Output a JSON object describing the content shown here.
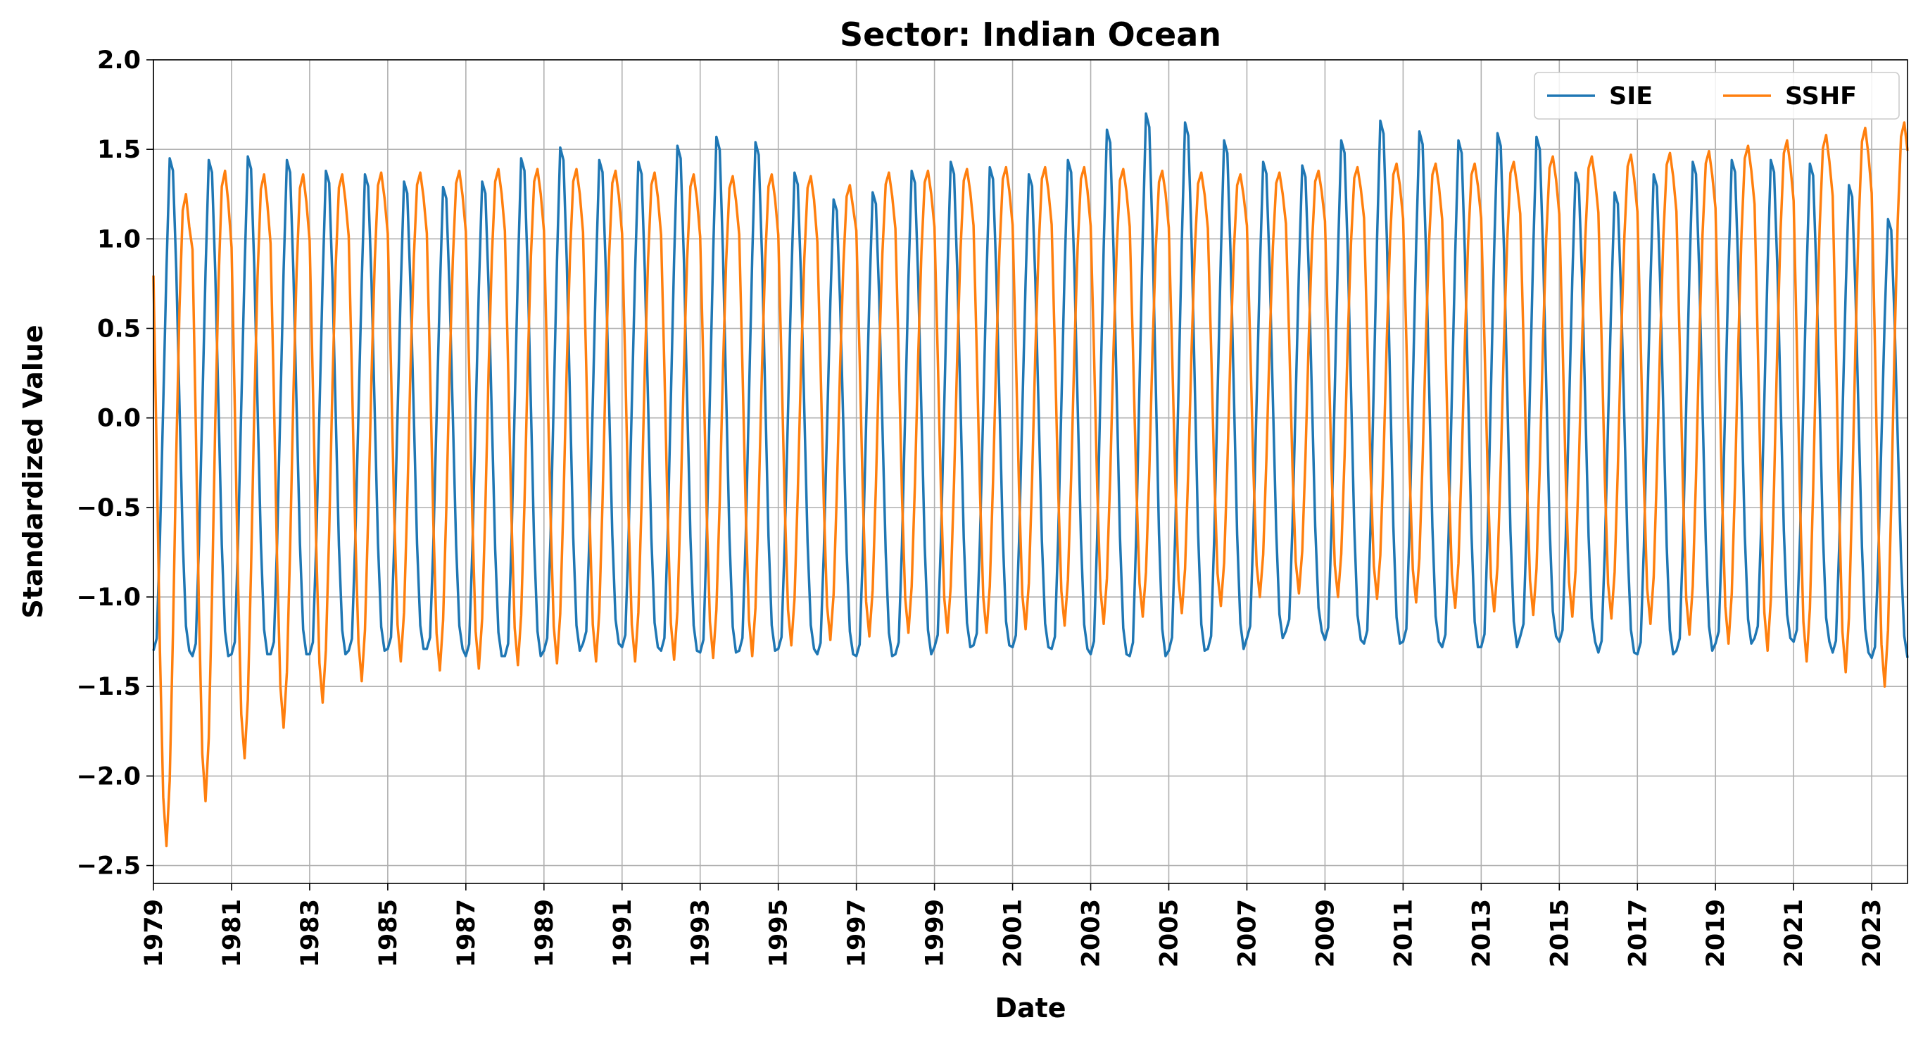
{
  "chart_data": {
    "type": "line",
    "title": "Sector: Indian Ocean",
    "xlabel": "Date",
    "ylabel": "Standardized Value",
    "x_range": [
      "1979-01",
      "2023-12"
    ],
    "ylim": [
      -2.6,
      2.0
    ],
    "y_ticks": [
      -2.5,
      -2.0,
      -1.5,
      -1.0,
      -0.5,
      0.0,
      0.5,
      1.0,
      1.5,
      2.0
    ],
    "y_tick_labels": [
      "−2.5",
      "−2.0",
      "−1.5",
      "−1.0",
      "−0.5",
      "0.0",
      "0.5",
      "1.0",
      "1.5",
      "2.0"
    ],
    "x_ticks": [
      "1979",
      "1981",
      "1983",
      "1985",
      "1987",
      "1989",
      "1991",
      "1993",
      "1995",
      "1997",
      "1999",
      "2001",
      "2003",
      "2005",
      "2007",
      "2009",
      "2011",
      "2013",
      "2015",
      "2017",
      "2019",
      "2021",
      "2023"
    ],
    "grid": true,
    "legend": {
      "position": "top-right",
      "columns": 2
    },
    "series": [
      {
        "name": "SIE",
        "color": "#1f77b4",
        "cycle": "annual",
        "annual_max": [
          1.45,
          1.44,
          1.46,
          1.44,
          1.38,
          1.36,
          1.32,
          1.29,
          1.32,
          1.45,
          1.51,
          1.44,
          1.43,
          1.52,
          1.57,
          1.54,
          1.37,
          1.22,
          1.26,
          1.38,
          1.43,
          1.4,
          1.36,
          1.44,
          1.61,
          1.7,
          1.65,
          1.55,
          1.43,
          1.41,
          1.55,
          1.66,
          1.6,
          1.55,
          1.59,
          1.57,
          1.37,
          1.26,
          1.36,
          1.43,
          1.44,
          1.44,
          1.42,
          1.3,
          1.11
        ],
        "annual_min": [
          -1.3,
          -1.33,
          -1.32,
          -1.32,
          -1.32,
          -1.3,
          -1.29,
          -1.29,
          -1.33,
          -1.33,
          -1.3,
          -1.26,
          -1.28,
          -1.3,
          -1.31,
          -1.3,
          -1.29,
          -1.32,
          -1.33,
          -1.32,
          -1.28,
          -1.27,
          -1.28,
          -1.29,
          -1.32,
          -1.33,
          -1.3,
          -1.29,
          -1.23,
          -1.19,
          -1.24,
          -1.26,
          -1.25,
          -1.28,
          -1.28,
          -1.22,
          -1.25,
          -1.31,
          -1.32,
          -1.3,
          -1.26,
          -1.23,
          -1.25,
          -1.31,
          -1.34
        ]
      },
      {
        "name": "SSHF",
        "color": "#ff7f0e",
        "cycle": "annual",
        "annual_max": [
          1.25,
          1.38,
          1.36,
          1.36,
          1.36,
          1.37,
          1.37,
          1.38,
          1.39,
          1.39,
          1.39,
          1.38,
          1.37,
          1.36,
          1.35,
          1.36,
          1.35,
          1.3,
          1.37,
          1.38,
          1.39,
          1.4,
          1.4,
          1.4,
          1.39,
          1.38,
          1.37,
          1.36,
          1.37,
          1.38,
          1.4,
          1.42,
          1.42,
          1.42,
          1.43,
          1.46,
          1.46,
          1.47,
          1.48,
          1.49,
          1.52,
          1.55,
          1.58,
          1.62,
          1.65
        ],
        "annual_min": [
          -2.39,
          -2.14,
          -1.9,
          -1.73,
          -1.59,
          -1.47,
          -1.36,
          -1.41,
          -1.4,
          -1.38,
          -1.37,
          -1.36,
          -1.36,
          -1.35,
          -1.34,
          -1.33,
          -1.27,
          -1.24,
          -1.22,
          -1.2,
          -1.2,
          -1.2,
          -1.18,
          -1.16,
          -1.15,
          -1.11,
          -1.09,
          -1.05,
          -1.0,
          -0.98,
          -1.0,
          -1.01,
          -1.03,
          -1.06,
          -1.08,
          -1.1,
          -1.11,
          -1.12,
          -1.15,
          -1.21,
          -1.26,
          -1.3,
          -1.36,
          -1.42,
          -1.5
        ]
      }
    ]
  }
}
